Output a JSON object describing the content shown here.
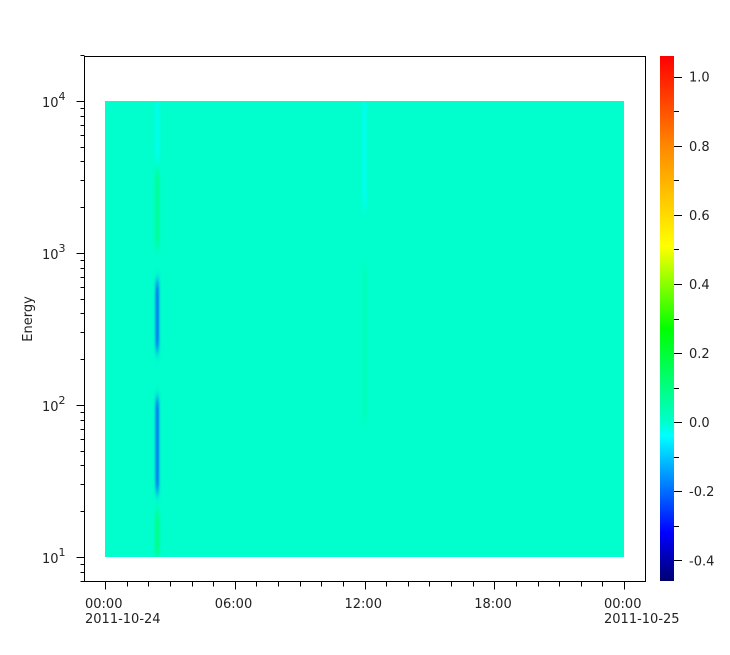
{
  "chart_data": {
    "type": "heatmap",
    "title": "",
    "ylabel": "Energy",
    "xlabel": "",
    "x_axis": {
      "type": "time",
      "range": [
        "2011-10-23 23:00",
        "2011-10-25 01:00"
      ],
      "ticks": [
        {
          "time": "2011-10-24 00:00",
          "label": "00:00",
          "sublabel": "2011-10-24"
        },
        {
          "time": "2011-10-24 06:00",
          "label": "06:00",
          "sublabel": ""
        },
        {
          "time": "2011-10-24 12:00",
          "label": "12:00",
          "sublabel": ""
        },
        {
          "time": "2011-10-24 18:00",
          "label": "18:00",
          "sublabel": ""
        },
        {
          "time": "2011-10-25 00:00",
          "label": "00:00",
          "sublabel": "2011-10-25"
        }
      ]
    },
    "y_axis": {
      "scale": "log",
      "range": [
        7,
        20000
      ],
      "ticks": [
        {
          "value": 10,
          "base": "10",
          "exp": "1"
        },
        {
          "value": 100,
          "base": "10",
          "exp": "2"
        },
        {
          "value": 1000,
          "base": "10",
          "exp": "3"
        },
        {
          "value": 10000,
          "base": "10",
          "exp": "4"
        }
      ]
    },
    "data_extent": {
      "time": [
        "2011-10-24 00:00",
        "2011-10-25 00:00"
      ],
      "energy": [
        10,
        10000
      ]
    },
    "background_value": 0.0,
    "features": [
      {
        "time": "2011-10-24 02:25",
        "energy": [
          4000,
          10000
        ],
        "value": -0.03
      },
      {
        "time": "2011-10-24 02:25",
        "energy": [
          1100,
          3500
        ],
        "value": 0.08
      },
      {
        "time": "2011-10-24 02:25",
        "energy": [
          230,
          650
        ],
        "value": -0.22
      },
      {
        "time": "2011-10-24 02:25",
        "energy": [
          27,
          110
        ],
        "value": -0.22
      },
      {
        "time": "2011-10-24 02:25",
        "energy": [
          10,
          20
        ],
        "value": 0.1
      },
      {
        "time": "2011-10-24 12:00",
        "energy": [
          2000,
          10000
        ],
        "value": -0.03
      },
      {
        "time": "2011-10-24 12:00",
        "energy": [
          80,
          800
        ],
        "value": 0.03
      }
    ],
    "colorbar": {
      "range": [
        -0.46,
        1.06
      ],
      "ticks": [
        "-0.4",
        "-0.2",
        "0.0",
        "0.2",
        "0.4",
        "0.6",
        "0.8",
        "1.0"
      ],
      "colormap": [
        {
          "value": -0.46,
          "color": "#000070"
        },
        {
          "value": -0.32,
          "color": "#0000ff"
        },
        {
          "value": -0.04,
          "color": "#00ffff"
        },
        {
          "value": 0.0,
          "color": "#00ffcc"
        },
        {
          "value": 0.27,
          "color": "#00ff00"
        },
        {
          "value": 0.51,
          "color": "#ffff00"
        },
        {
          "value": 0.79,
          "color": "#ff8c00"
        },
        {
          "value": 1.06,
          "color": "#ff0000"
        }
      ]
    }
  }
}
